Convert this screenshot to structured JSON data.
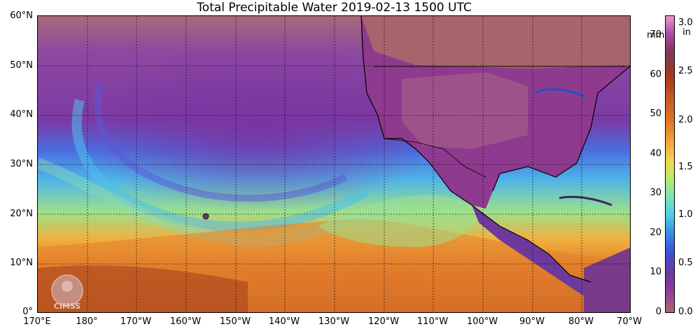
{
  "title": "Total Precipitable Water  2019-02-13 1500 UTC",
  "logo_text": "CIMSS",
  "lat_labels": [
    "60°N",
    "50°N",
    "40°N",
    "30°N",
    "20°N",
    "10°N",
    "0°"
  ],
  "lon_labels": [
    "170°E",
    "180°",
    "170°W",
    "160°W",
    "150°W",
    "140°W",
    "130°W",
    "120°W",
    "110°W",
    "100°W",
    "90°W",
    "80°W",
    "70°W"
  ],
  "colorbar": {
    "mm_unit": "mm",
    "in_unit": "in",
    "mm_ticks": [
      "70",
      "60",
      "50",
      "40",
      "30",
      "20",
      "10",
      "0"
    ],
    "in_ticks": [
      "3.0",
      "2.5",
      "2.0",
      "1.5",
      "1.0",
      "0.5",
      "0.0"
    ]
  }
}
